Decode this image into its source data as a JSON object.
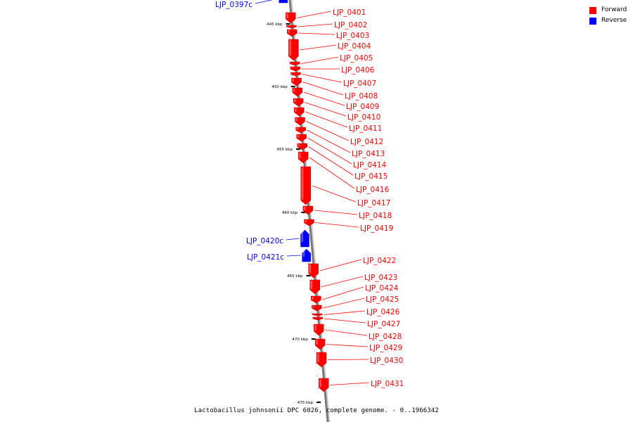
{
  "legend": {
    "forward_label": "Forward",
    "reverse_label": "Reverse",
    "forward_color": "#ff0000",
    "reverse_color": "#0000ff"
  },
  "caption": "Lactobacillus johnsonii DPC 6026, complete genome. - 0..1966342",
  "ticks": [
    {
      "label": "445 kbp",
      "kbp": 445
    },
    {
      "label": "450 kbp",
      "kbp": 450
    },
    {
      "label": "455 kbp",
      "kbp": 455
    },
    {
      "label": "460 kbp",
      "kbp": 460
    },
    {
      "label": "465 kbp",
      "kbp": 465
    },
    {
      "label": "470 kbp",
      "kbp": 470
    },
    {
      "label": "475 kbp",
      "kbp": 475
    }
  ],
  "genes": [
    {
      "name": "LJP_0397c",
      "strand": "reverse"
    },
    {
      "name": "LJP_0401",
      "strand": "forward"
    },
    {
      "name": "LJP_0402",
      "strand": "forward"
    },
    {
      "name": "LJP_0403",
      "strand": "forward"
    },
    {
      "name": "LJP_0404",
      "strand": "forward"
    },
    {
      "name": "LJP_0405",
      "strand": "forward"
    },
    {
      "name": "LJP_0406",
      "strand": "forward"
    },
    {
      "name": "LJP_0407",
      "strand": "forward"
    },
    {
      "name": "LJP_0408",
      "strand": "forward"
    },
    {
      "name": "LJP_0409",
      "strand": "forward"
    },
    {
      "name": "LJP_0410",
      "strand": "forward"
    },
    {
      "name": "LJP_0411",
      "strand": "forward"
    },
    {
      "name": "LJP_0412",
      "strand": "forward"
    },
    {
      "name": "LJP_0413",
      "strand": "forward"
    },
    {
      "name": "LJP_0414",
      "strand": "forward"
    },
    {
      "name": "LJP_0415",
      "strand": "forward"
    },
    {
      "name": "LJP_0416",
      "strand": "forward"
    },
    {
      "name": "LJP_0417",
      "strand": "forward"
    },
    {
      "name": "LJP_0418",
      "strand": "forward"
    },
    {
      "name": "LJP_0419",
      "strand": "forward"
    },
    {
      "name": "LJP_0420c",
      "strand": "reverse"
    },
    {
      "name": "LJP_0421c",
      "strand": "reverse"
    },
    {
      "name": "LJP_0422",
      "strand": "forward"
    },
    {
      "name": "LJP_0423",
      "strand": "forward"
    },
    {
      "name": "LJP_0424",
      "strand": "forward"
    },
    {
      "name": "LJP_0425",
      "strand": "forward"
    },
    {
      "name": "LJP_0426",
      "strand": "forward"
    },
    {
      "name": "LJP_0427",
      "strand": "forward"
    },
    {
      "name": "LJP_0428",
      "strand": "forward"
    },
    {
      "name": "LJP_0429",
      "strand": "forward"
    },
    {
      "name": "LJP_0430",
      "strand": "forward"
    },
    {
      "name": "LJP_0431",
      "strand": "forward"
    }
  ]
}
